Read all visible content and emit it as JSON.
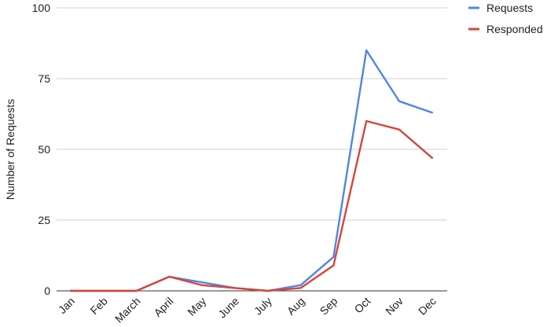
{
  "chart_data": {
    "type": "line",
    "title": "",
    "xlabel": "",
    "ylabel": "Number of Requests",
    "categories": [
      "Jan",
      "Feb",
      "March",
      "April",
      "May",
      "June",
      "July",
      "Aug",
      "Sep",
      "Oct",
      "Nov",
      "Dec"
    ],
    "ylim": [
      0,
      100
    ],
    "yticks": [
      0,
      25,
      50,
      75,
      100
    ],
    "grid": true,
    "legend_position": "top-right",
    "series": [
      {
        "name": "Requests",
        "color": "#4f86e6",
        "values": [
          0,
          0,
          0,
          5,
          3,
          1,
          0,
          2,
          12,
          85,
          67,
          63
        ]
      },
      {
        "name": "Responded",
        "color": "#d6453d",
        "values": [
          0,
          0,
          0,
          5,
          2,
          1,
          0,
          1,
          9,
          60,
          57,
          47
        ]
      }
    ]
  }
}
